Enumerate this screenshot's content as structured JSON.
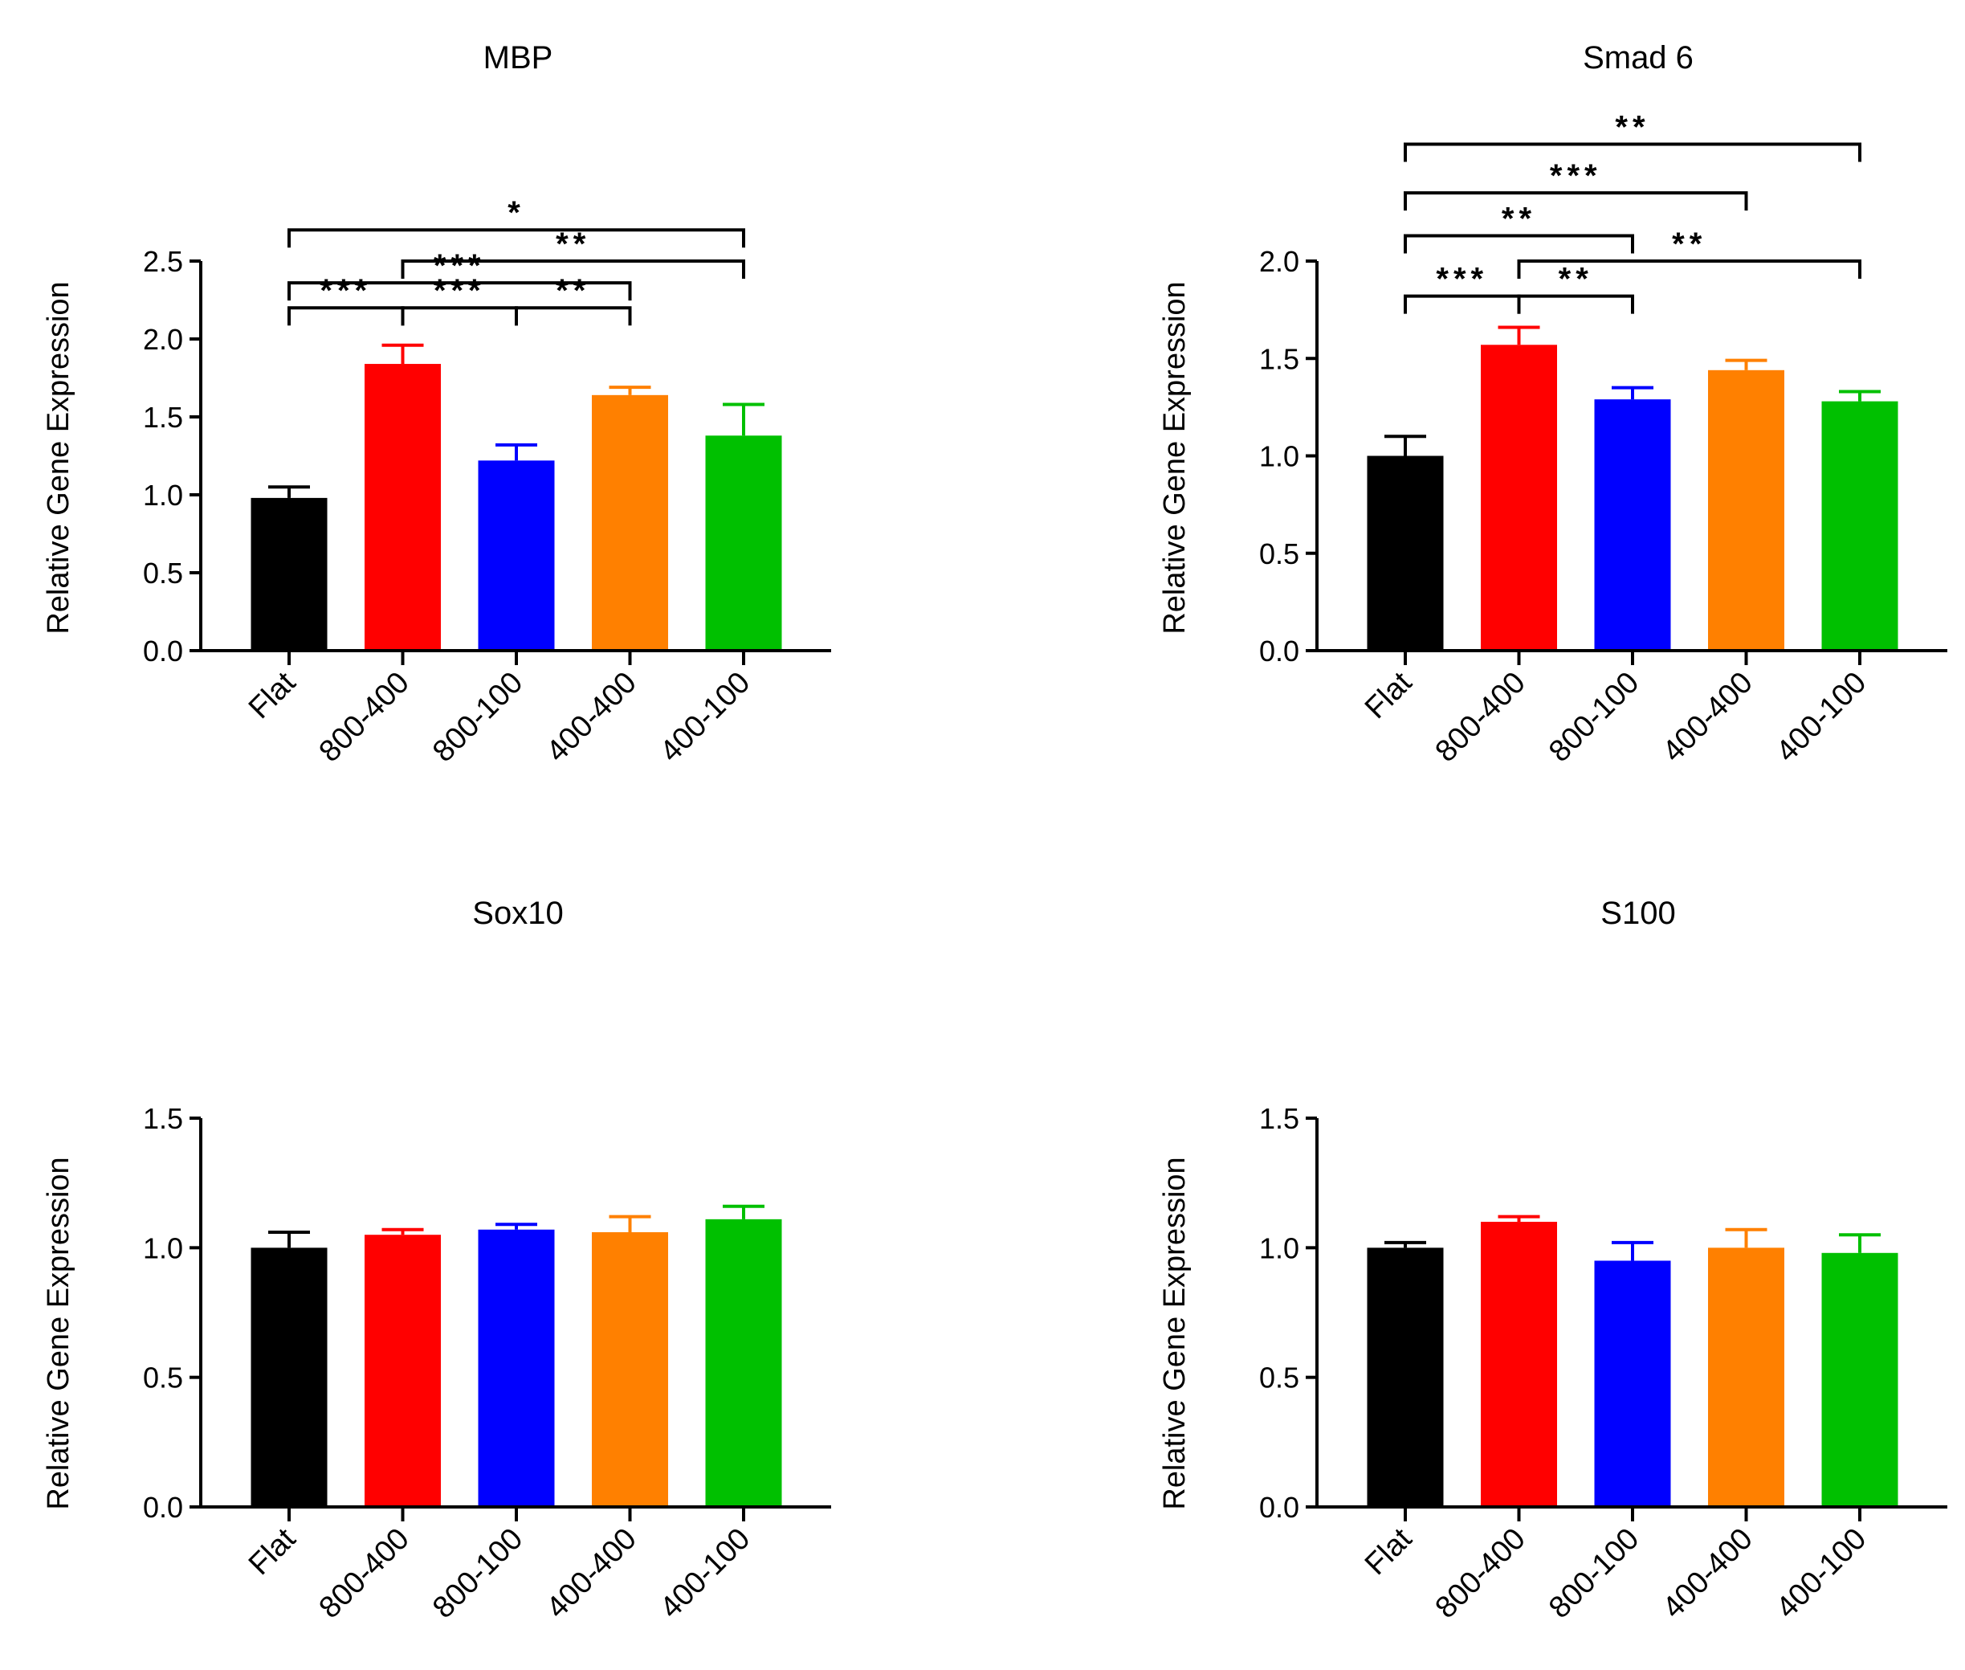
{
  "chart_data": [
    {
      "type": "bar",
      "title": "MBP",
      "xlabel": "",
      "ylabel": "Relative Gene Expression",
      "ylim": [
        0,
        2.5
      ],
      "yticks": [
        "0.0",
        "0.5",
        "1.0",
        "1.5",
        "2.0",
        "2.5"
      ],
      "categories": [
        "Flat",
        "800-400",
        "800-100",
        "400-400",
        "400-100"
      ],
      "values": [
        0.98,
        1.84,
        1.22,
        1.64,
        1.38
      ],
      "errors": [
        0.07,
        0.12,
        0.1,
        0.05,
        0.2
      ],
      "colors": [
        "#000000",
        "#ff0000",
        "#0000ff",
        "#ff8000",
        "#00c000"
      ],
      "significance": [
        {
          "from": 0,
          "to": 4,
          "label": "*",
          "level": 2.7
        },
        {
          "from": 0,
          "to": 3,
          "label": "***",
          "level": 2.36
        },
        {
          "from": 1,
          "to": 4,
          "label": "**",
          "level": 2.5
        },
        {
          "from": 0,
          "to": 1,
          "label": "***",
          "level": 2.2
        },
        {
          "from": 1,
          "to": 2,
          "label": "***",
          "level": 2.2
        },
        {
          "from": 2,
          "to": 3,
          "label": "**",
          "level": 2.2
        }
      ]
    },
    {
      "type": "bar",
      "title": "Smad 6",
      "xlabel": "",
      "ylabel": "Relative Gene Expression",
      "ylim": [
        0,
        2.0
      ],
      "yticks": [
        "0.0",
        "0.5",
        "1.0",
        "1.5",
        "2.0"
      ],
      "categories": [
        "Flat",
        "800-400",
        "800-100",
        "400-400",
        "400-100"
      ],
      "values": [
        1.0,
        1.57,
        1.29,
        1.44,
        1.28
      ],
      "errors": [
        0.1,
        0.09,
        0.06,
        0.05,
        0.05
      ],
      "colors": [
        "#000000",
        "#ff0000",
        "#0000ff",
        "#ff8000",
        "#00c000"
      ],
      "significance": [
        {
          "from": 0,
          "to": 4,
          "label": "**",
          "level": 2.6
        },
        {
          "from": 0,
          "to": 3,
          "label": "***",
          "level": 2.35
        },
        {
          "from": 0,
          "to": 2,
          "label": "**",
          "level": 2.13
        },
        {
          "from": 1,
          "to": 4,
          "label": "**",
          "level": 2.0
        },
        {
          "from": 0,
          "to": 1,
          "label": "***",
          "level": 1.82
        },
        {
          "from": 1,
          "to": 2,
          "label": "**",
          "level": 1.82
        }
      ]
    },
    {
      "type": "bar",
      "title": "Sox10",
      "xlabel": "",
      "ylabel": "Relative Gene Expression",
      "ylim": [
        0,
        1.5
      ],
      "yticks": [
        "0.0",
        "0.5",
        "1.0",
        "1.5"
      ],
      "categories": [
        "Flat",
        "800-400",
        "800-100",
        "400-400",
        "400-100"
      ],
      "values": [
        1.0,
        1.05,
        1.07,
        1.06,
        1.11
      ],
      "errors": [
        0.06,
        0.02,
        0.02,
        0.06,
        0.05
      ],
      "colors": [
        "#000000",
        "#ff0000",
        "#0000ff",
        "#ff8000",
        "#00c000"
      ],
      "significance": []
    },
    {
      "type": "bar",
      "title": "S100",
      "xlabel": "",
      "ylabel": "Relative Gene Expression",
      "ylim": [
        0,
        1.5
      ],
      "yticks": [
        "0.0",
        "0.5",
        "1.0",
        "1.5"
      ],
      "categories": [
        "Flat",
        "800-400",
        "800-100",
        "400-400",
        "400-100"
      ],
      "values": [
        1.0,
        1.1,
        0.95,
        1.0,
        0.98
      ],
      "errors": [
        0.02,
        0.02,
        0.07,
        0.07,
        0.07
      ],
      "colors": [
        "#000000",
        "#ff0000",
        "#0000ff",
        "#ff8000",
        "#00c000"
      ],
      "significance": []
    }
  ]
}
